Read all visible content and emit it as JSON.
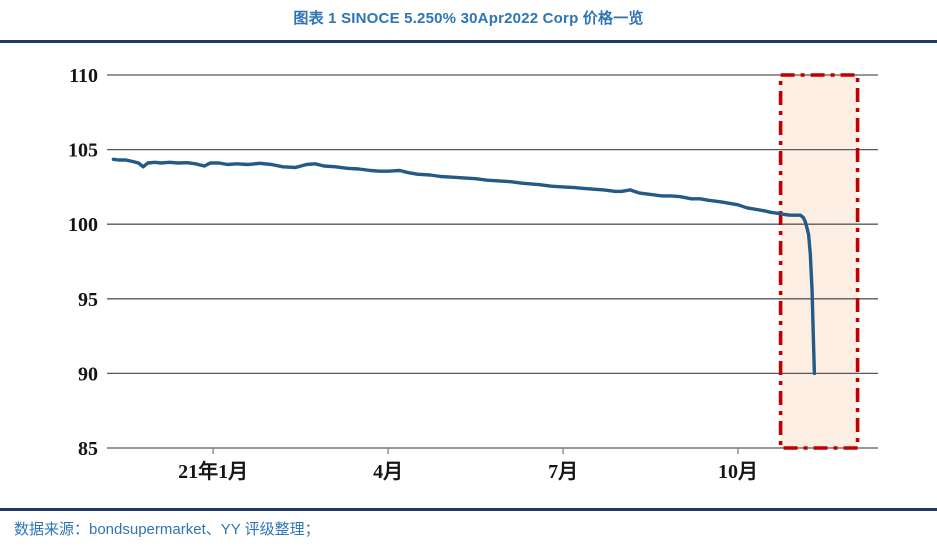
{
  "header": {
    "title": "图表 1 SINOCE 5.250% 30Apr2022 Corp 价格一览"
  },
  "footer": {
    "source": "数据来源：bondsupermarket、YY 评级整理；"
  },
  "colors": {
    "title_blue": "#2e75b6",
    "divider_navy": "#1f3864",
    "price_line": "#255a87",
    "gridline": "#595959",
    "tick": "#808080",
    "highlight_stroke": "#c00000",
    "highlight_fill": "#fdeee4",
    "axis_label": "#151515"
  },
  "chart_data": {
    "type": "line",
    "title": "SINOCE 5.250% 30Apr2022 Corp 价格一览",
    "xlabel": "",
    "ylabel": "",
    "x_unit": "months since 2020-11-01",
    "xlim": [
      0.18,
      13.4
    ],
    "ylim": [
      85,
      110
    ],
    "grid": "horizontal",
    "legend": "none",
    "y_ticks": [
      85,
      90,
      95,
      100,
      105,
      110
    ],
    "x_ticks": [
      {
        "m": 2,
        "label": "21年1月"
      },
      {
        "m": 5,
        "label": "4月"
      },
      {
        "m": 8,
        "label": "7月"
      },
      {
        "m": 11,
        "label": "10月"
      }
    ],
    "highlight_region": {
      "x_start": 11.73,
      "x_end": 13.05,
      "y_start": 85,
      "y_end": 110,
      "style": "red dash-dot box with light peach fill marking the November 2021 price collapse"
    },
    "series": [
      {
        "name": "SINOCE 5.250% 30Apr2022 Corp price",
        "points": [
          [
            0.29,
            104.35
          ],
          [
            0.38,
            104.3
          ],
          [
            0.5,
            104.3
          ],
          [
            0.62,
            104.2
          ],
          [
            0.72,
            104.1
          ],
          [
            0.8,
            103.85
          ],
          [
            0.88,
            104.1
          ],
          [
            1.0,
            104.15
          ],
          [
            1.1,
            104.1
          ],
          [
            1.25,
            104.15
          ],
          [
            1.4,
            104.1
          ],
          [
            1.55,
            104.12
          ],
          [
            1.7,
            104.05
          ],
          [
            1.85,
            103.9
          ],
          [
            1.95,
            104.1
          ],
          [
            2.1,
            104.1
          ],
          [
            2.25,
            104.0
          ],
          [
            2.4,
            104.05
          ],
          [
            2.6,
            104.0
          ],
          [
            2.8,
            104.08
          ],
          [
            3.0,
            104.0
          ],
          [
            3.2,
            103.85
          ],
          [
            3.41,
            103.8
          ],
          [
            3.6,
            104.0
          ],
          [
            3.75,
            104.05
          ],
          [
            3.9,
            103.9
          ],
          [
            4.1,
            103.85
          ],
          [
            4.3,
            103.75
          ],
          [
            4.5,
            103.7
          ],
          [
            4.7,
            103.6
          ],
          [
            4.85,
            103.55
          ],
          [
            5.0,
            103.55
          ],
          [
            5.2,
            103.6
          ],
          [
            5.35,
            103.45
          ],
          [
            5.5,
            103.35
          ],
          [
            5.72,
            103.3
          ],
          [
            5.9,
            103.2
          ],
          [
            6.1,
            103.15
          ],
          [
            6.3,
            103.1
          ],
          [
            6.5,
            103.05
          ],
          [
            6.7,
            102.95
          ],
          [
            6.9,
            102.9
          ],
          [
            7.1,
            102.85
          ],
          [
            7.3,
            102.75
          ],
          [
            7.45,
            102.7
          ],
          [
            7.6,
            102.65
          ],
          [
            7.8,
            102.55
          ],
          [
            8.0,
            102.5
          ],
          [
            8.2,
            102.45
          ],
          [
            8.35,
            102.4
          ],
          [
            8.5,
            102.35
          ],
          [
            8.7,
            102.3
          ],
          [
            8.9,
            102.2
          ],
          [
            9.0,
            102.2
          ],
          [
            9.15,
            102.3
          ],
          [
            9.3,
            102.1
          ],
          [
            9.5,
            102.0
          ],
          [
            9.7,
            101.9
          ],
          [
            9.85,
            101.9
          ],
          [
            10.0,
            101.85
          ],
          [
            10.2,
            101.7
          ],
          [
            10.35,
            101.7
          ],
          [
            10.5,
            101.6
          ],
          [
            10.7,
            101.5
          ],
          [
            10.85,
            101.4
          ],
          [
            11.0,
            101.3
          ],
          [
            11.15,
            101.1
          ],
          [
            11.3,
            101.0
          ],
          [
            11.45,
            100.9
          ],
          [
            11.56,
            100.8
          ],
          [
            11.65,
            100.75
          ],
          [
            11.73,
            100.7
          ],
          [
            11.8,
            100.65
          ],
          [
            11.9,
            100.6
          ],
          [
            12.0,
            100.6
          ],
          [
            12.07,
            100.6
          ],
          [
            12.12,
            100.45
          ],
          [
            12.15,
            100.2
          ],
          [
            12.18,
            99.8
          ],
          [
            12.21,
            99.3
          ],
          [
            12.24,
            98.0
          ],
          [
            12.27,
            95.5
          ],
          [
            12.29,
            92.5
          ],
          [
            12.31,
            90.0
          ]
        ]
      }
    ]
  }
}
